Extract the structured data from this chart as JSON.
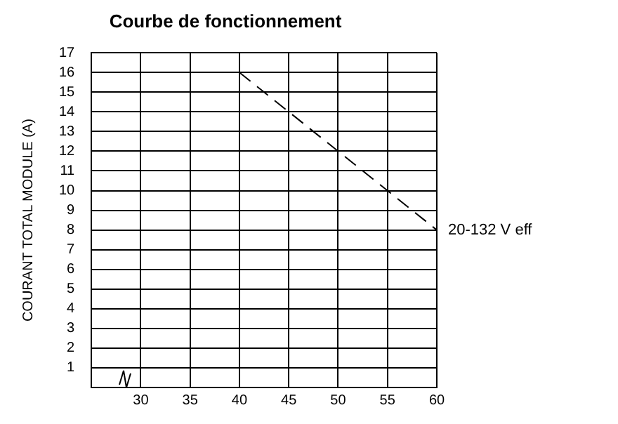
{
  "chart_data": {
    "type": "line",
    "title": "Courbe de fonctionnement",
    "ylabel": "COURANT TOTAL MODULE (A)",
    "x": [
      40,
      45,
      50,
      55,
      60
    ],
    "series": [
      {
        "color": "#000000",
        "values": [
          16,
          14,
          12,
          10,
          8
        ]
      }
    ],
    "xlim": [
      25,
      60
    ],
    "xticks": [
      30,
      35,
      40,
      45,
      50,
      55,
      60
    ],
    "ylim": [
      0,
      17
    ],
    "yticks": [
      1,
      2,
      3,
      4,
      5,
      6,
      7,
      8,
      9,
      10,
      11,
      12,
      13,
      14,
      15,
      16,
      17
    ],
    "grid": true,
    "legend": false,
    "marker": "none",
    "line_style": "dashed",
    "annotations": [
      {
        "text": "20-132 V eff",
        "x": 60,
        "y": 8
      }
    ]
  }
}
